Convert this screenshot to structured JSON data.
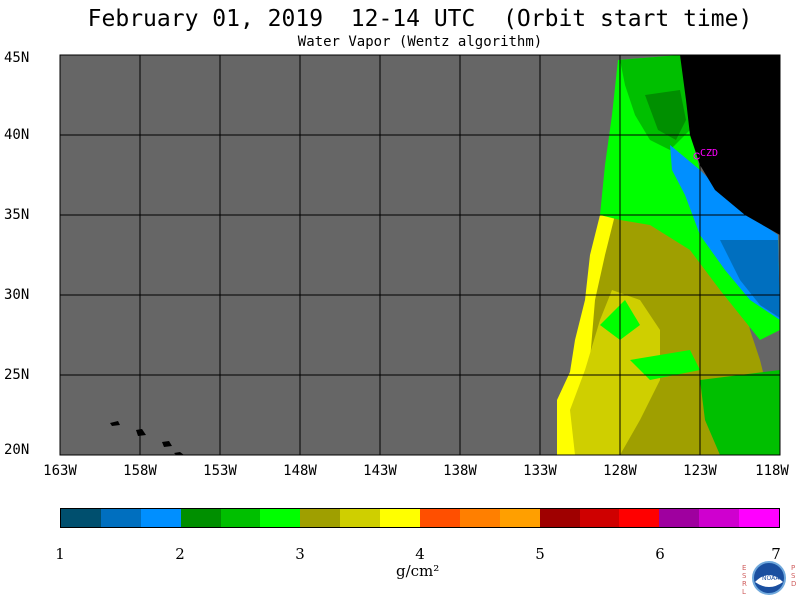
{
  "header": {
    "title": "February 01, 2019  12-14 UTC  (Orbit start time)",
    "subtitle": "Water Vapor (Wentz algorithm)"
  },
  "map": {
    "lat_labels": [
      "45N",
      "40N",
      "35N",
      "30N",
      "25N",
      "20N"
    ],
    "lon_labels": [
      "163W",
      "158W",
      "153W",
      "148W",
      "143W",
      "138W",
      "133W",
      "128W",
      "123W",
      "118W"
    ],
    "station_label": "CZD",
    "colors": {
      "no_data": "#666666",
      "land": "#000000",
      "station": "#ff00ff"
    }
  },
  "colorbar": {
    "colors": [
      "#004f6e",
      "#006fbf",
      "#008fff",
      "#008f00",
      "#00bf00",
      "#00ff00",
      "#9f9f00",
      "#cfcf00",
      "#ffff00",
      "#ff4f00",
      "#ff7f00",
      "#ff9f00",
      "#9f0000",
      "#cf0000",
      "#ff0000",
      "#9f009f",
      "#cf00cf",
      "#ff00ff"
    ],
    "ticks": [
      "1",
      "2",
      "3",
      "4",
      "5",
      "6",
      "7"
    ],
    "unit": "g/cm²"
  },
  "logo": {
    "left": "ESRL",
    "right": "PSD",
    "center": "NOAA"
  }
}
